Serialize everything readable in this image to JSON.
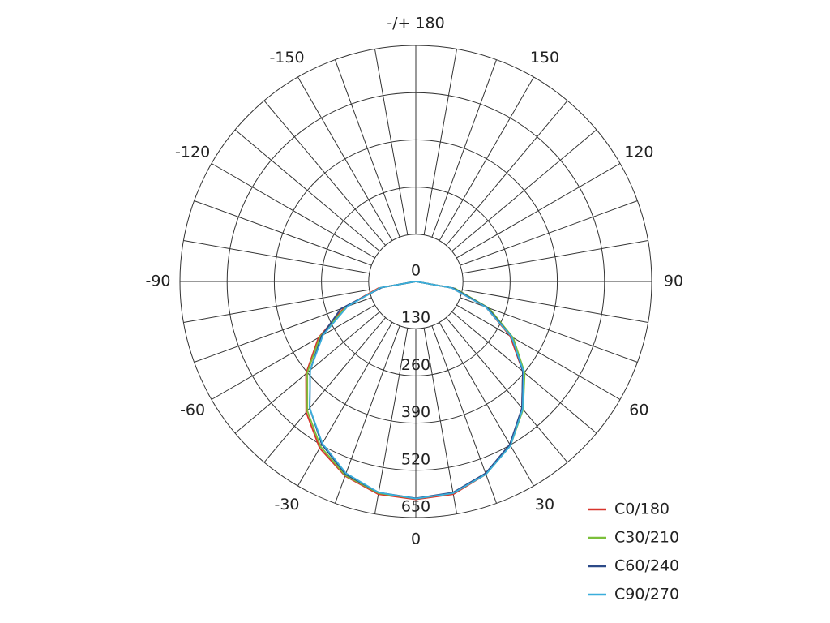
{
  "chart_data": {
    "type": "polar",
    "theta": [
      -90,
      -80,
      -70,
      -60,
      -50,
      -40,
      -30,
      -20,
      -10,
      0,
      10,
      20,
      30,
      40,
      50,
      60,
      70,
      80,
      90
    ],
    "series": [
      {
        "name": "C0/180",
        "color": "#d8342c",
        "values": [
          0,
          105,
          210,
          310,
          395,
          470,
          530,
          570,
          595,
          600,
          595,
          565,
          520,
          455,
          385,
          300,
          205,
          100,
          0
        ]
      },
      {
        "name": "C30/210",
        "color": "#7bbf3a",
        "values": [
          0,
          100,
          205,
          305,
          390,
          465,
          525,
          568,
          592,
          598,
          592,
          565,
          522,
          460,
          392,
          310,
          215,
          110,
          0
        ]
      },
      {
        "name": "C60/240",
        "color": "#2c4a88",
        "values": [
          0,
          95,
          220,
          300,
          380,
          455,
          518,
          565,
          590,
          597,
          590,
          562,
          518,
          455,
          385,
          305,
          210,
          105,
          0
        ]
      },
      {
        "name": "C90/270",
        "color": "#3aaedb",
        "values": [
          0,
          100,
          200,
          295,
          380,
          455,
          515,
          562,
          590,
          598,
          592,
          565,
          522,
          458,
          388,
          305,
          205,
          100,
          0
        ]
      }
    ],
    "rlim": [
      0,
      650
    ],
    "rticks": [
      0,
      130,
      260,
      390,
      520,
      650
    ],
    "thetaticks": [
      -150,
      -120,
      -90,
      -60,
      -30,
      0,
      30,
      60,
      90,
      120,
      150,
      {
        "value": 180,
        "label": "-/+ 180"
      }
    ],
    "theta_grid_step": 10,
    "grid": true,
    "legend": "lower-right"
  }
}
